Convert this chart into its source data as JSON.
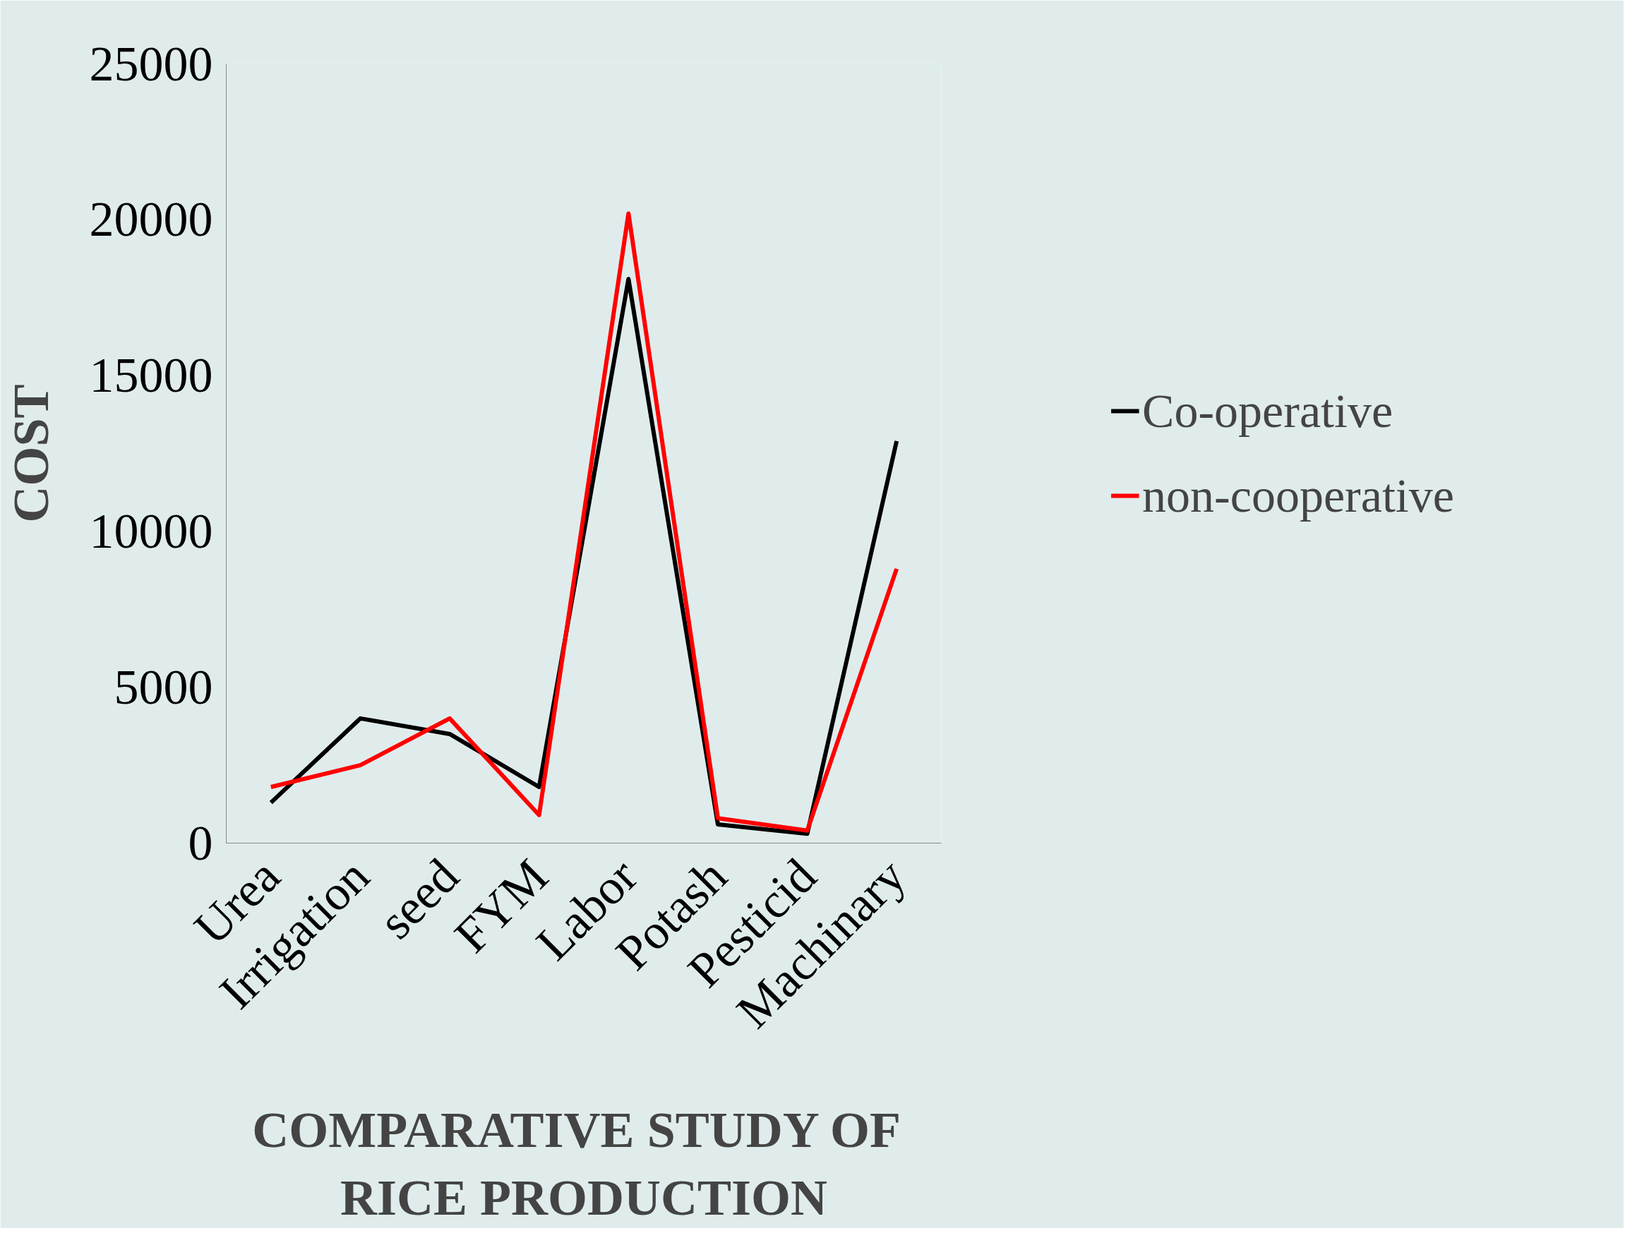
{
  "chart_data": {
    "type": "line",
    "xlabel": "COMPARATIVE  STUDY OF\nRICE PRODUCTION",
    "ylabel": "COST",
    "categories": [
      "Urea",
      "Irrigation",
      "seed",
      "FYM",
      "Labor",
      "Potash",
      "Pesticid",
      "Machinary"
    ],
    "series": [
      {
        "name": "Co-operative",
        "color": "#000000",
        "values": [
          1300,
          4000,
          3500,
          1800,
          18100,
          600,
          300,
          12900
        ]
      },
      {
        "name": "non-cooperative",
        "color": "#ff0000",
        "values": [
          1800,
          2500,
          4000,
          900,
          20200,
          800,
          400,
          8800
        ]
      }
    ],
    "ylim": [
      0,
      25000
    ],
    "yticks": [
      0,
      5000,
      10000,
      15000,
      20000,
      25000
    ],
    "grid": false,
    "legend": "right",
    "marker": "none",
    "line_style": "solid"
  }
}
